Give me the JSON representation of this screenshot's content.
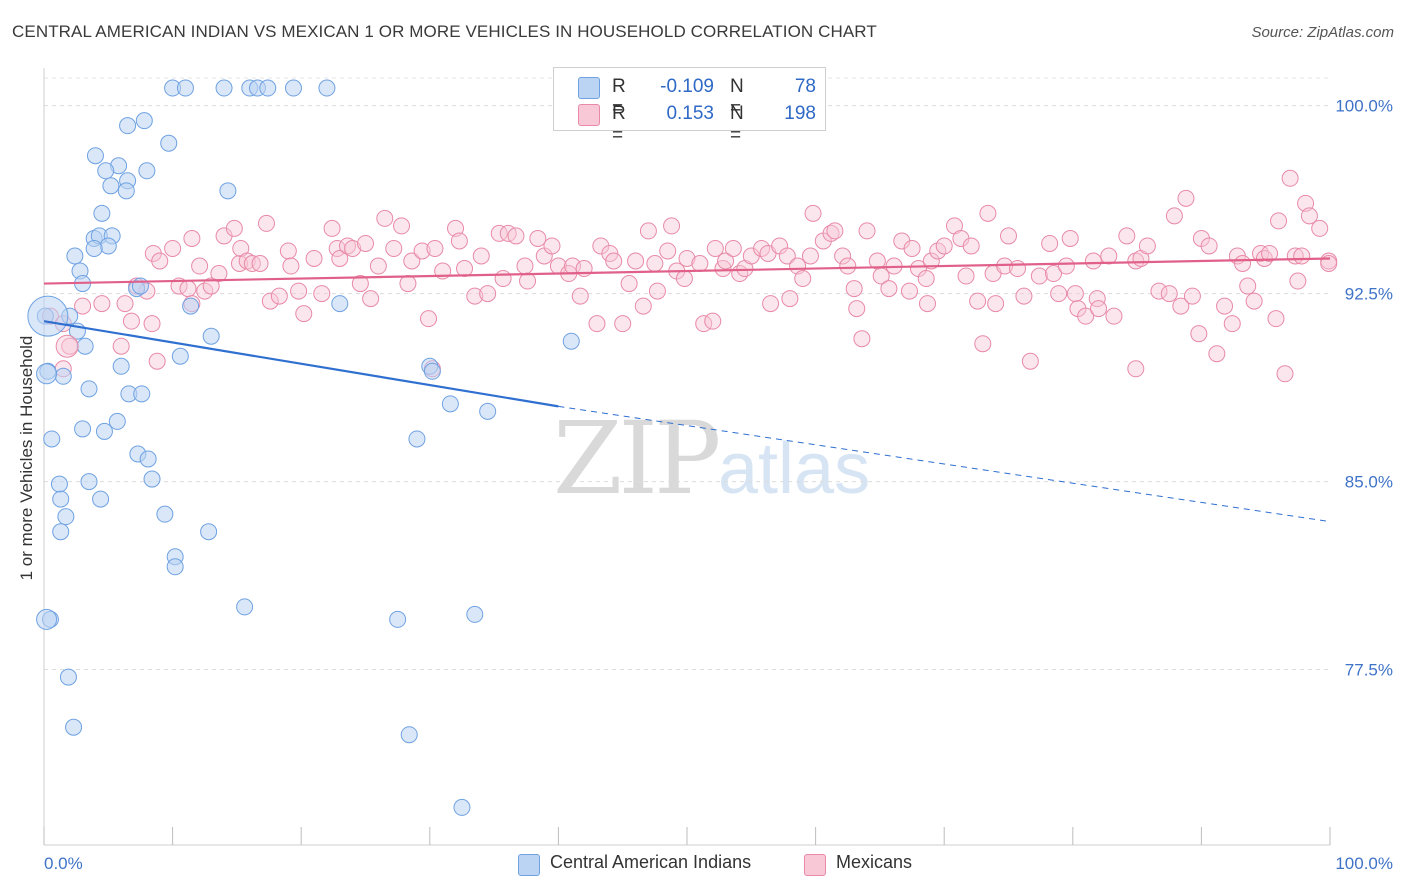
{
  "title": "CENTRAL AMERICAN INDIAN VS MEXICAN 1 OR MORE VEHICLES IN HOUSEHOLD CORRELATION CHART",
  "source": "Source: ZipAtlas.com",
  "watermark": {
    "zip": "ZIP",
    "atlas": "atlas"
  },
  "legend": {
    "r_label": "R =",
    "n_label": "N =",
    "series": [
      {
        "name": "Central American Indians",
        "r": "-0.109",
        "n": "78",
        "color": "#6fa2e2",
        "fill": "#bcd4f3"
      },
      {
        "name": "Mexicans",
        "r": "0.153",
        "n": "198",
        "color": "#e88aa8",
        "fill": "#f8c8d6"
      }
    ]
  },
  "chart_data": {
    "type": "scatter",
    "title": "CENTRAL AMERICAN INDIAN VS MEXICAN 1 OR MORE VEHICLES IN HOUSEHOLD CORRELATION CHART",
    "xlabel": "",
    "ylabel": "1 or more Vehicles in Household",
    "xlim": [
      0,
      100
    ],
    "ylim": [
      70.5,
      101.5
    ],
    "x_tick_labels": [
      "0.0%",
      "100.0%"
    ],
    "y_ticks": [
      77.5,
      85.0,
      92.5,
      100.0
    ],
    "y_tick_labels": [
      "77.5%",
      "85.0%",
      "92.5%",
      "100.0%"
    ],
    "grid": true,
    "legend_position": "top-center",
    "series": [
      {
        "name": "Central American Indians",
        "color": "#6fa2e2",
        "trend": {
          "x0": 0,
          "y0": 91.4,
          "x1": 40,
          "y1": 88.0,
          "dashed_to_x": 100,
          "dashed_to_y": 83.4
        },
        "points": [
          [
            10,
            100.7
          ],
          [
            11,
            100.7
          ],
          [
            14,
            100.7
          ],
          [
            16,
            100.7
          ],
          [
            16.6,
            100.7
          ],
          [
            17.4,
            100.7
          ],
          [
            19.4,
            100.7
          ],
          [
            22,
            100.7
          ],
          [
            6.5,
            99.2
          ],
          [
            7.8,
            99.4
          ],
          [
            9.7,
            98.5
          ],
          [
            4,
            98
          ],
          [
            5.8,
            97.6
          ],
          [
            4.8,
            97.4
          ],
          [
            8,
            97.4
          ],
          [
            6.5,
            97
          ],
          [
            5.2,
            96.8
          ],
          [
            6.4,
            96.6
          ],
          [
            14.3,
            96.6
          ],
          [
            4.5,
            95.7
          ],
          [
            3.9,
            94.7
          ],
          [
            4.3,
            94.8
          ],
          [
            5.3,
            94.8
          ],
          [
            5,
            94.4
          ],
          [
            3.9,
            94.3
          ],
          [
            2.4,
            94
          ],
          [
            2.8,
            93.4
          ],
          [
            3,
            92.9
          ],
          [
            7.2,
            92.7
          ],
          [
            7.5,
            92.8
          ],
          [
            11.4,
            92
          ],
          [
            23,
            92.1
          ],
          [
            0.1,
            91.6
          ],
          [
            2,
            91.6
          ],
          [
            2.6,
            91
          ],
          [
            13,
            90.8
          ],
          [
            3.2,
            90.4
          ],
          [
            41,
            90.6
          ],
          [
            10.6,
            90
          ],
          [
            0.3,
            89.4
          ],
          [
            6,
            89.6
          ],
          [
            30,
            89.6
          ],
          [
            30.2,
            89.4
          ],
          [
            1.5,
            89.2
          ],
          [
            3.5,
            88.7
          ],
          [
            6.6,
            88.5
          ],
          [
            7.6,
            88.5
          ],
          [
            31.6,
            88.1
          ],
          [
            34.5,
            87.8
          ],
          [
            5.7,
            87.4
          ],
          [
            3,
            87.1
          ],
          [
            4.7,
            87
          ],
          [
            0.6,
            86.7
          ],
          [
            29,
            86.7
          ],
          [
            7.3,
            86.1
          ],
          [
            8.1,
            85.9
          ],
          [
            8.4,
            85.1
          ],
          [
            3.5,
            85
          ],
          [
            1.2,
            84.9
          ],
          [
            1.3,
            84.3
          ],
          [
            4.4,
            84.3
          ],
          [
            1.7,
            83.6
          ],
          [
            9.4,
            83.7
          ],
          [
            1.3,
            83
          ],
          [
            12.8,
            83
          ],
          [
            10.2,
            82
          ],
          [
            10.2,
            81.6
          ],
          [
            15.6,
            80
          ],
          [
            27.5,
            79.5
          ],
          [
            33.5,
            79.7
          ],
          [
            0.5,
            79.5
          ],
          [
            1.9,
            77.2
          ],
          [
            2.3,
            75.2
          ],
          [
            28.4,
            74.9
          ],
          [
            32.5,
            72
          ]
        ]
      },
      {
        "name": "Mexicans",
        "color": "#e88aa8",
        "trend": {
          "x0": 0,
          "y0": 92.9,
          "x1": 100,
          "y1": 93.9
        },
        "points": [
          [
            0.5,
            91.6
          ],
          [
            1.5,
            91.3
          ],
          [
            2,
            90.4
          ],
          [
            1.5,
            89.5
          ],
          [
            3,
            92
          ],
          [
            4.5,
            92.1
          ],
          [
            6,
            90.4
          ],
          [
            6.3,
            92.1
          ],
          [
            6.8,
            91.4
          ],
          [
            7.2,
            92.8
          ],
          [
            8,
            92.6
          ],
          [
            8.4,
            91.3
          ],
          [
            8.5,
            94.1
          ],
          [
            8.8,
            89.8
          ],
          [
            9,
            93.8
          ],
          [
            10,
            94.3
          ],
          [
            10.5,
            92.8
          ],
          [
            11.2,
            92.7
          ],
          [
            11.5,
            94.7
          ],
          [
            11.5,
            92.1
          ],
          [
            12.1,
            93.6
          ],
          [
            12.5,
            92.6
          ],
          [
            13,
            92.8
          ],
          [
            13.6,
            93.3
          ],
          [
            14,
            94.8
          ],
          [
            14.8,
            95.1
          ],
          [
            15.2,
            93.7
          ],
          [
            15.3,
            94.3
          ],
          [
            15.8,
            93.8
          ],
          [
            16.2,
            93.7
          ],
          [
            16.8,
            93.7
          ],
          [
            17.3,
            95.3
          ],
          [
            17.6,
            92.2
          ],
          [
            18.3,
            92.4
          ],
          [
            19,
            94.2
          ],
          [
            19.2,
            93.6
          ],
          [
            19.8,
            92.6
          ],
          [
            20.2,
            91.7
          ],
          [
            21,
            93.9
          ],
          [
            21.6,
            92.5
          ],
          [
            22.4,
            95.1
          ],
          [
            22.8,
            94.3
          ],
          [
            23,
            93.9
          ],
          [
            23.6,
            94.4
          ],
          [
            24,
            94.3
          ],
          [
            24.6,
            92.9
          ],
          [
            25,
            94.5
          ],
          [
            25.4,
            92.3
          ],
          [
            26,
            93.6
          ],
          [
            26.5,
            95.5
          ],
          [
            27.2,
            94.3
          ],
          [
            27.8,
            95.2
          ],
          [
            28.3,
            92.9
          ],
          [
            28.6,
            93.8
          ],
          [
            29.4,
            94.2
          ],
          [
            29.9,
            91.5
          ],
          [
            30.2,
            89.5
          ],
          [
            30.4,
            94.3
          ],
          [
            31,
            93.4
          ],
          [
            32,
            95.1
          ],
          [
            32.3,
            94.6
          ],
          [
            32.7,
            93.5
          ],
          [
            33.5,
            92.4
          ],
          [
            34,
            94
          ],
          [
            34.5,
            92.5
          ],
          [
            35.4,
            94.9
          ],
          [
            35.7,
            93.1
          ],
          [
            36.1,
            94.9
          ],
          [
            36.7,
            94.8
          ],
          [
            37.4,
            93.6
          ],
          [
            37.6,
            93
          ],
          [
            38.4,
            94.7
          ],
          [
            38.9,
            94
          ],
          [
            39.5,
            94.4
          ],
          [
            40,
            93.6
          ],
          [
            40.8,
            93.3
          ],
          [
            41.1,
            93.6
          ],
          [
            41.7,
            92.4
          ],
          [
            42,
            93.5
          ],
          [
            43,
            91.3
          ],
          [
            43.3,
            94.4
          ],
          [
            44,
            94.1
          ],
          [
            44.3,
            93.8
          ],
          [
            45,
            91.3
          ],
          [
            45.5,
            92.9
          ],
          [
            46,
            93.8
          ],
          [
            46.6,
            92
          ],
          [
            47,
            95
          ],
          [
            47.5,
            93.7
          ],
          [
            47.7,
            92.6
          ],
          [
            48.5,
            94.2
          ],
          [
            48.8,
            95.2
          ],
          [
            49.2,
            93.4
          ],
          [
            49.8,
            93.1
          ],
          [
            50,
            93.9
          ],
          [
            51,
            93.7
          ],
          [
            51.3,
            91.3
          ],
          [
            52,
            91.4
          ],
          [
            52.2,
            94.3
          ],
          [
            52.8,
            93.5
          ],
          [
            53,
            93.8
          ],
          [
            53.6,
            94.3
          ],
          [
            54.1,
            93.3
          ],
          [
            54.5,
            93.5
          ],
          [
            55,
            94
          ],
          [
            55.8,
            94.3
          ],
          [
            56.3,
            94.1
          ],
          [
            56.5,
            92.1
          ],
          [
            57.2,
            94.4
          ],
          [
            57.8,
            94
          ],
          [
            58,
            92.3
          ],
          [
            58.6,
            93.6
          ],
          [
            59,
            93.1
          ],
          [
            59.6,
            94
          ],
          [
            59.8,
            95.7
          ],
          [
            60.6,
            94.6
          ],
          [
            61.2,
            94.9
          ],
          [
            61.5,
            95
          ],
          [
            62.1,
            94
          ],
          [
            62.5,
            93.6
          ],
          [
            63,
            92.7
          ],
          [
            63.2,
            91.9
          ],
          [
            63.6,
            90.7
          ],
          [
            64,
            95
          ],
          [
            64.8,
            93.8
          ],
          [
            65.1,
            93.2
          ],
          [
            65.7,
            92.7
          ],
          [
            66.1,
            93.6
          ],
          [
            66.7,
            94.6
          ],
          [
            67.3,
            92.6
          ],
          [
            67.5,
            94.3
          ],
          [
            68,
            93.5
          ],
          [
            68.6,
            93.1
          ],
          [
            68.7,
            92.1
          ],
          [
            69,
            93.8
          ],
          [
            69.5,
            94.2
          ],
          [
            70,
            94.4
          ],
          [
            70.8,
            95.2
          ],
          [
            71.3,
            94.7
          ],
          [
            71.7,
            93.2
          ],
          [
            72.1,
            94.4
          ],
          [
            72.6,
            92.2
          ],
          [
            73,
            90.5
          ],
          [
            73.4,
            95.7
          ],
          [
            73.8,
            93.3
          ],
          [
            74,
            92.1
          ],
          [
            74.7,
            93.6
          ],
          [
            75,
            94.8
          ],
          [
            75.7,
            93.5
          ],
          [
            76.2,
            92.4
          ],
          [
            76.7,
            89.8
          ],
          [
            77.4,
            93.2
          ],
          [
            78.2,
            94.5
          ],
          [
            78.5,
            93.3
          ],
          [
            78.9,
            92.5
          ],
          [
            79.5,
            93.6
          ],
          [
            79.8,
            94.7
          ],
          [
            80.2,
            92.5
          ],
          [
            80.4,
            91.9
          ],
          [
            81,
            91.6
          ],
          [
            81.6,
            93.8
          ],
          [
            81.9,
            92.3
          ],
          [
            82,
            91.9
          ],
          [
            82.8,
            94
          ],
          [
            83.2,
            91.6
          ],
          [
            84.2,
            94.8
          ],
          [
            84.9,
            93.8
          ],
          [
            84.9,
            89.5
          ],
          [
            85.3,
            93.9
          ],
          [
            85.8,
            94.4
          ],
          [
            86.7,
            92.6
          ],
          [
            87.5,
            92.5
          ],
          [
            87.9,
            95.6
          ],
          [
            88.4,
            92
          ],
          [
            88.8,
            96.3
          ],
          [
            89.3,
            92.4
          ],
          [
            89.8,
            90.9
          ],
          [
            90,
            94.7
          ],
          [
            90.6,
            94.4
          ],
          [
            91.2,
            90.1
          ],
          [
            91.8,
            92
          ],
          [
            92.4,
            91.3
          ],
          [
            92.8,
            94
          ],
          [
            93.2,
            93.7
          ],
          [
            93.6,
            92.8
          ],
          [
            94.1,
            92.2
          ],
          [
            94.6,
            94.1
          ],
          [
            94.9,
            93.9
          ],
          [
            95.3,
            94.1
          ],
          [
            95.8,
            91.5
          ],
          [
            96,
            95.4
          ],
          [
            96.5,
            89.3
          ],
          [
            96.9,
            97.1
          ],
          [
            97.3,
            94
          ],
          [
            97.5,
            93
          ],
          [
            97.8,
            94
          ],
          [
            98.1,
            96.1
          ],
          [
            98.4,
            95.6
          ],
          [
            99.2,
            95.1
          ],
          [
            99.9,
            93.8
          ],
          [
            99.9,
            93.7
          ]
        ]
      }
    ]
  }
}
